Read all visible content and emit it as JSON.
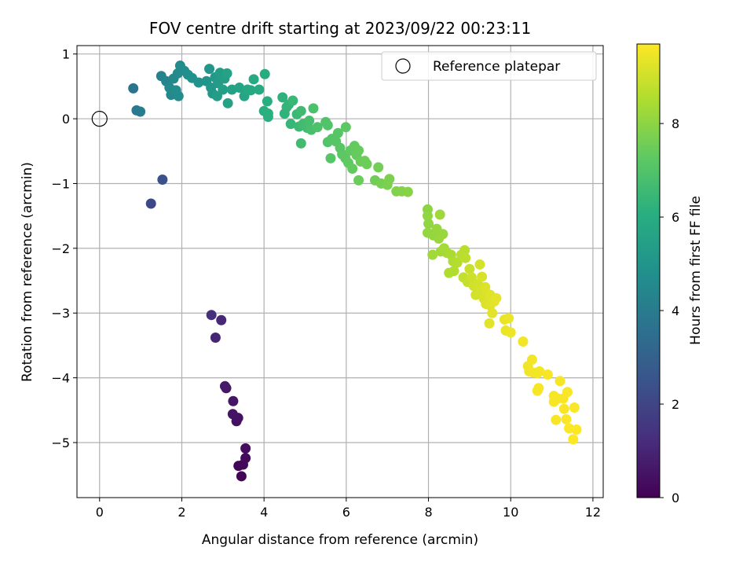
{
  "chart_data": {
    "type": "scatter",
    "title": "FOV centre drift starting at 2023/09/22 00:23:11",
    "xlabel": "Angular distance from reference (arcmin)",
    "ylabel": "Rotation from reference (arcmin)",
    "xlim": [
      -0.55,
      12.25
    ],
    "ylim": [
      -5.85,
      1.13
    ],
    "xticks": [
      0,
      2,
      4,
      6,
      8,
      10,
      12
    ],
    "yticks": [
      1,
      0,
      -1,
      -2,
      -3,
      -4,
      -5
    ],
    "grid": true,
    "legend": {
      "placement": "top-right",
      "entries": [
        "Reference platepar"
      ]
    },
    "reference_point": {
      "x": 0,
      "y": 0
    },
    "colorbar": {
      "label": "Hours from first FF file",
      "range": [
        0,
        9.7
      ],
      "ticks": [
        0,
        2,
        4,
        6,
        8
      ],
      "colormap": "viridis"
    },
    "points": [
      {
        "x": 3.45,
        "y": -5.52,
        "h": 0.1
      },
      {
        "x": 3.38,
        "y": -5.36,
        "h": 0.15
      },
      {
        "x": 3.49,
        "y": -5.34,
        "h": 0.2
      },
      {
        "x": 3.55,
        "y": -5.24,
        "h": 0.25
      },
      {
        "x": 3.55,
        "y": -5.09,
        "h": 0.3
      },
      {
        "x": 3.33,
        "y": -4.67,
        "h": 0.4
      },
      {
        "x": 3.37,
        "y": -4.62,
        "h": 0.45
      },
      {
        "x": 3.24,
        "y": -4.56,
        "h": 0.5
      },
      {
        "x": 3.25,
        "y": -4.36,
        "h": 0.55
      },
      {
        "x": 3.08,
        "y": -4.16,
        "h": 0.6
      },
      {
        "x": 3.05,
        "y": -4.13,
        "h": 0.65
      },
      {
        "x": 2.82,
        "y": -3.38,
        "h": 1.0
      },
      {
        "x": 2.96,
        "y": -3.11,
        "h": 1.05
      },
      {
        "x": 2.72,
        "y": -3.03,
        "h": 1.3
      },
      {
        "x": 1.25,
        "y": -1.31,
        "h": 2.1
      },
      {
        "x": 1.53,
        "y": -0.94,
        "h": 2.4
      },
      {
        "x": 0.82,
        "y": 0.47,
        "h": 3.7
      },
      {
        "x": 0.9,
        "y": 0.13,
        "h": 3.9
      },
      {
        "x": 0.99,
        "y": 0.11,
        "h": 4.0
      },
      {
        "x": 1.5,
        "y": 0.66,
        "h": 4.3
      },
      {
        "x": 1.62,
        "y": 0.58,
        "h": 4.4
      },
      {
        "x": 1.7,
        "y": 0.48,
        "h": 4.5
      },
      {
        "x": 1.74,
        "y": 0.37,
        "h": 4.5
      },
      {
        "x": 1.8,
        "y": 0.62,
        "h": 4.55
      },
      {
        "x": 1.9,
        "y": 0.7,
        "h": 4.6
      },
      {
        "x": 1.96,
        "y": 0.82,
        "h": 4.6
      },
      {
        "x": 1.86,
        "y": 0.44,
        "h": 4.65
      },
      {
        "x": 1.92,
        "y": 0.35,
        "h": 4.7
      },
      {
        "x": 2.06,
        "y": 0.74,
        "h": 4.75
      },
      {
        "x": 2.15,
        "y": 0.68,
        "h": 4.8
      },
      {
        "x": 2.25,
        "y": 0.63,
        "h": 4.85
      },
      {
        "x": 2.41,
        "y": 0.56,
        "h": 4.9
      },
      {
        "x": 2.6,
        "y": 0.58,
        "h": 5.0
      },
      {
        "x": 2.67,
        "y": 0.77,
        "h": 5.05
      },
      {
        "x": 2.71,
        "y": 0.48,
        "h": 5.1
      },
      {
        "x": 2.75,
        "y": 0.39,
        "h": 5.15
      },
      {
        "x": 2.81,
        "y": 0.64,
        "h": 5.2
      },
      {
        "x": 2.88,
        "y": 0.55,
        "h": 5.25
      },
      {
        "x": 2.86,
        "y": 0.35,
        "h": 5.3
      },
      {
        "x": 2.93,
        "y": 0.71,
        "h": 5.35
      },
      {
        "x": 3.0,
        "y": 0.45,
        "h": 5.4
      },
      {
        "x": 3.04,
        "y": 0.62,
        "h": 5.45
      },
      {
        "x": 3.1,
        "y": 0.7,
        "h": 5.5
      },
      {
        "x": 3.12,
        "y": 0.24,
        "h": 5.5
      },
      {
        "x": 3.22,
        "y": 0.45,
        "h": 5.55
      },
      {
        "x": 3.4,
        "y": 0.48,
        "h": 5.6
      },
      {
        "x": 3.52,
        "y": 0.35,
        "h": 5.7
      },
      {
        "x": 3.6,
        "y": 0.45,
        "h": 5.75
      },
      {
        "x": 3.68,
        "y": 0.44,
        "h": 5.8
      },
      {
        "x": 3.75,
        "y": 0.61,
        "h": 5.85
      },
      {
        "x": 3.88,
        "y": 0.45,
        "h": 5.9
      },
      {
        "x": 4.02,
        "y": 0.69,
        "h": 5.95
      },
      {
        "x": 4.08,
        "y": 0.27,
        "h": 6.0
      },
      {
        "x": 4.0,
        "y": 0.12,
        "h": 6.05
      },
      {
        "x": 4.1,
        "y": 0.03,
        "h": 6.1
      },
      {
        "x": 4.1,
        "y": 0.08,
        "h": 6.1
      },
      {
        "x": 4.45,
        "y": 0.33,
        "h": 6.2
      },
      {
        "x": 4.5,
        "y": 0.08,
        "h": 6.25
      },
      {
        "x": 4.55,
        "y": 0.18,
        "h": 6.3
      },
      {
        "x": 4.6,
        "y": 0.22,
        "h": 6.35
      },
      {
        "x": 4.65,
        "y": -0.08,
        "h": 6.4
      },
      {
        "x": 4.7,
        "y": 0.28,
        "h": 6.45
      },
      {
        "x": 4.8,
        "y": 0.07,
        "h": 6.5
      },
      {
        "x": 4.85,
        "y": -0.12,
        "h": 6.55
      },
      {
        "x": 4.9,
        "y": 0.12,
        "h": 6.6
      },
      {
        "x": 4.95,
        "y": -0.08,
        "h": 6.65
      },
      {
        "x": 4.9,
        "y": -0.38,
        "h": 6.65
      },
      {
        "x": 5.05,
        "y": -0.14,
        "h": 6.7
      },
      {
        "x": 5.1,
        "y": -0.03,
        "h": 6.75
      },
      {
        "x": 5.15,
        "y": -0.17,
        "h": 6.8
      },
      {
        "x": 5.2,
        "y": 0.16,
        "h": 6.85
      },
      {
        "x": 5.3,
        "y": -0.13,
        "h": 6.9
      },
      {
        "x": 5.5,
        "y": -0.05,
        "h": 6.95
      },
      {
        "x": 5.55,
        "y": -0.1,
        "h": 7.0
      },
      {
        "x": 5.55,
        "y": -0.36,
        "h": 7.0
      },
      {
        "x": 5.65,
        "y": -0.31,
        "h": 7.05
      },
      {
        "x": 5.75,
        "y": -0.35,
        "h": 7.1
      },
      {
        "x": 5.8,
        "y": -0.22,
        "h": 7.1
      },
      {
        "x": 5.62,
        "y": -0.61,
        "h": 7.1
      },
      {
        "x": 5.85,
        "y": -0.45,
        "h": 7.15
      },
      {
        "x": 5.9,
        "y": -0.55,
        "h": 7.2
      },
      {
        "x": 5.98,
        "y": -0.61,
        "h": 7.25
      },
      {
        "x": 5.99,
        "y": -0.13,
        "h": 7.25
      },
      {
        "x": 6.05,
        "y": -0.68,
        "h": 7.3
      },
      {
        "x": 6.1,
        "y": -0.49,
        "h": 7.3
      },
      {
        "x": 6.15,
        "y": -0.77,
        "h": 7.35
      },
      {
        "x": 6.2,
        "y": -0.42,
        "h": 7.35
      },
      {
        "x": 6.25,
        "y": -0.56,
        "h": 7.4
      },
      {
        "x": 6.3,
        "y": -0.49,
        "h": 7.4
      },
      {
        "x": 6.3,
        "y": -0.95,
        "h": 7.45
      },
      {
        "x": 6.35,
        "y": -0.66,
        "h": 7.45
      },
      {
        "x": 6.45,
        "y": -0.65,
        "h": 7.5
      },
      {
        "x": 6.5,
        "y": -0.7,
        "h": 7.5
      },
      {
        "x": 6.7,
        "y": -0.95,
        "h": 7.55
      },
      {
        "x": 6.78,
        "y": -0.75,
        "h": 7.6
      },
      {
        "x": 6.85,
        "y": -1.0,
        "h": 7.65
      },
      {
        "x": 7.0,
        "y": -1.02,
        "h": 7.7
      },
      {
        "x": 7.05,
        "y": -0.93,
        "h": 7.75
      },
      {
        "x": 7.22,
        "y": -1.12,
        "h": 7.8
      },
      {
        "x": 7.35,
        "y": -1.12,
        "h": 7.85
      },
      {
        "x": 7.5,
        "y": -1.13,
        "h": 7.9
      },
      {
        "x": 7.98,
        "y": -1.4,
        "h": 8.0
      },
      {
        "x": 7.98,
        "y": -1.5,
        "h": 8.05
      },
      {
        "x": 8.0,
        "y": -1.62,
        "h": 8.05
      },
      {
        "x": 7.98,
        "y": -1.76,
        "h": 8.1
      },
      {
        "x": 8.12,
        "y": -1.8,
        "h": 8.1
      },
      {
        "x": 8.2,
        "y": -1.7,
        "h": 8.15
      },
      {
        "x": 8.25,
        "y": -1.85,
        "h": 8.2
      },
      {
        "x": 8.35,
        "y": -1.78,
        "h": 8.2
      },
      {
        "x": 8.28,
        "y": -1.48,
        "h": 8.25
      },
      {
        "x": 8.1,
        "y": -2.1,
        "h": 8.3
      },
      {
        "x": 8.3,
        "y": -2.05,
        "h": 8.3
      },
      {
        "x": 8.38,
        "y": -2.0,
        "h": 8.35
      },
      {
        "x": 8.45,
        "y": -2.07,
        "h": 8.4
      },
      {
        "x": 8.55,
        "y": -2.1,
        "h": 8.45
      },
      {
        "x": 8.6,
        "y": -2.2,
        "h": 8.5
      },
      {
        "x": 8.5,
        "y": -2.38,
        "h": 8.5
      },
      {
        "x": 8.62,
        "y": -2.35,
        "h": 8.55
      },
      {
        "x": 8.7,
        "y": -2.22,
        "h": 8.6
      },
      {
        "x": 8.8,
        "y": -2.1,
        "h": 8.65
      },
      {
        "x": 8.88,
        "y": -2.03,
        "h": 8.7
      },
      {
        "x": 8.9,
        "y": -2.15,
        "h": 8.75
      },
      {
        "x": 8.85,
        "y": -2.45,
        "h": 8.8
      },
      {
        "x": 8.95,
        "y": -2.52,
        "h": 8.85
      },
      {
        "x": 9.0,
        "y": -2.32,
        "h": 8.9
      },
      {
        "x": 9.05,
        "y": -2.45,
        "h": 8.95
      },
      {
        "x": 9.1,
        "y": -2.58,
        "h": 9.0
      },
      {
        "x": 9.15,
        "y": -2.72,
        "h": 9.05
      },
      {
        "x": 9.2,
        "y": -2.55,
        "h": 9.05
      },
      {
        "x": 9.25,
        "y": -2.25,
        "h": 9.1
      },
      {
        "x": 9.28,
        "y": -2.66,
        "h": 9.1
      },
      {
        "x": 9.3,
        "y": -2.44,
        "h": 9.15
      },
      {
        "x": 9.35,
        "y": -2.78,
        "h": 9.15
      },
      {
        "x": 9.38,
        "y": -2.6,
        "h": 9.2
      },
      {
        "x": 9.42,
        "y": -2.7,
        "h": 9.2
      },
      {
        "x": 9.4,
        "y": -2.86,
        "h": 9.2
      },
      {
        "x": 9.5,
        "y": -2.72,
        "h": 9.25
      },
      {
        "x": 9.5,
        "y": -2.88,
        "h": 9.25
      },
      {
        "x": 9.55,
        "y": -3.0,
        "h": 9.3
      },
      {
        "x": 9.6,
        "y": -2.82,
        "h": 9.3
      },
      {
        "x": 9.48,
        "y": -3.16,
        "h": 9.3
      },
      {
        "x": 9.65,
        "y": -2.77,
        "h": 9.35
      },
      {
        "x": 9.85,
        "y": -3.1,
        "h": 9.4
      },
      {
        "x": 9.88,
        "y": -3.27,
        "h": 9.4
      },
      {
        "x": 9.95,
        "y": -3.08,
        "h": 9.45
      },
      {
        "x": 10.0,
        "y": -3.3,
        "h": 9.45
      },
      {
        "x": 10.3,
        "y": -3.44,
        "h": 9.5
      },
      {
        "x": 10.42,
        "y": -3.82,
        "h": 9.5
      },
      {
        "x": 10.45,
        "y": -3.9,
        "h": 9.5
      },
      {
        "x": 10.52,
        "y": -3.72,
        "h": 9.55
      },
      {
        "x": 10.55,
        "y": -3.92,
        "h": 9.55
      },
      {
        "x": 10.65,
        "y": -3.93,
        "h": 9.55
      },
      {
        "x": 10.7,
        "y": -3.9,
        "h": 9.55
      },
      {
        "x": 10.65,
        "y": -4.2,
        "h": 9.6
      },
      {
        "x": 10.68,
        "y": -4.16,
        "h": 9.6
      },
      {
        "x": 10.9,
        "y": -3.95,
        "h": 9.6
      },
      {
        "x": 11.05,
        "y": -4.28,
        "h": 9.6
      },
      {
        "x": 11.05,
        "y": -4.37,
        "h": 9.6
      },
      {
        "x": 11.15,
        "y": -4.32,
        "h": 9.6
      },
      {
        "x": 11.2,
        "y": -4.05,
        "h": 9.6
      },
      {
        "x": 11.1,
        "y": -4.65,
        "h": 9.62
      },
      {
        "x": 11.28,
        "y": -4.32,
        "h": 9.62
      },
      {
        "x": 11.3,
        "y": -4.48,
        "h": 9.62
      },
      {
        "x": 11.38,
        "y": -4.22,
        "h": 9.64
      },
      {
        "x": 11.35,
        "y": -4.64,
        "h": 9.64
      },
      {
        "x": 11.42,
        "y": -4.78,
        "h": 9.65
      },
      {
        "x": 11.55,
        "y": -4.46,
        "h": 9.66
      },
      {
        "x": 11.52,
        "y": -4.95,
        "h": 9.68
      },
      {
        "x": 11.6,
        "y": -4.8,
        "h": 9.68
      }
    ]
  }
}
